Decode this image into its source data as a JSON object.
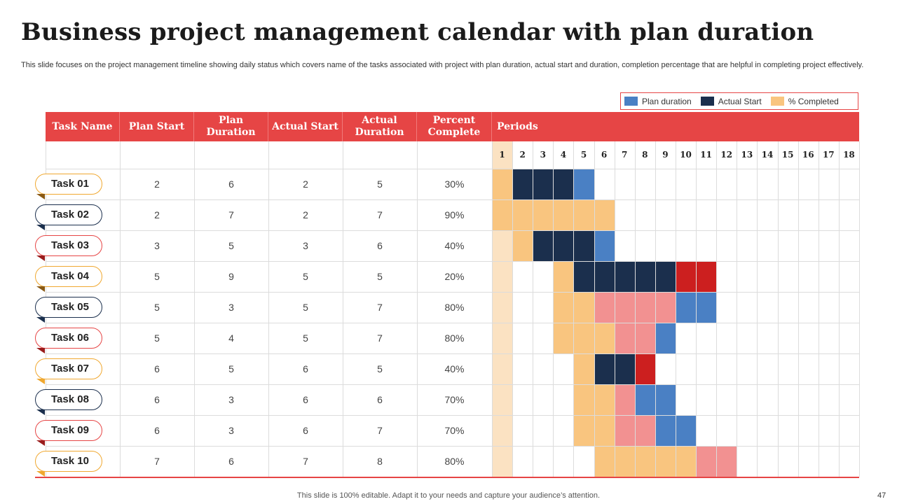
{
  "title": "Business project management calendar with plan duration",
  "subtitle": "This slide focuses on the project management timeline showing daily status which covers name of the tasks associated with project with plan duration, actual start and duration, completion percentage that are helpful in completing project effectively.",
  "legend": [
    {
      "label": "Plan duration",
      "color": "#4a80c4"
    },
    {
      "label": "Actual Start",
      "color": "#1b2f4d"
    },
    {
      "label": "% Completed",
      "color": "#f9c57f"
    }
  ],
  "columns": [
    "Task Name",
    "Plan Start",
    "Plan Duration",
    "Actual Start",
    "Actual Duration",
    "Percent Complete"
  ],
  "periods_label": "Periods",
  "days": [
    "1",
    "2",
    "3",
    "4",
    "5",
    "6",
    "7",
    "8",
    "9",
    "10",
    "11",
    "12",
    "13",
    "14",
    "15",
    "16",
    "17",
    "18"
  ],
  "colors": {
    "header": "#e64545",
    "plan": "#4a80c4",
    "actual": "#1b2f4d",
    "completed": "#f9c57f",
    "completed_alt": "#f29191",
    "overrun": "#cc1f1f",
    "day1": "#fbe2c2"
  },
  "tasks": [
    {
      "name": "Task 01",
      "plan_start": "2",
      "plan_duration": "6",
      "actual_start": "2",
      "actual_duration": "5",
      "percent": "30%",
      "tag_color": "#f0a830",
      "tail_color": "#8a5a14",
      "cells": [
        "completed",
        "actual",
        "actual",
        "actual",
        "plan"
      ]
    },
    {
      "name": "Task 02",
      "plan_start": "2",
      "plan_duration": "7",
      "actual_start": "2",
      "actual_duration": "7",
      "percent": "90%",
      "tag_color": "#1b2f4d",
      "tail_color": "#1b2f4d",
      "cells": [
        "completed",
        "completed",
        "completed",
        "completed",
        "completed",
        "completed"
      ]
    },
    {
      "name": "Task 03",
      "plan_start": "3",
      "plan_duration": "5",
      "actual_start": "3",
      "actual_duration": "6",
      "percent": "40%",
      "tag_color": "#e64545",
      "tail_color": "#9a1c1c",
      "cells": [
        "day1",
        "completed",
        "actual",
        "actual",
        "actual",
        "plan"
      ]
    },
    {
      "name": "Task 04",
      "plan_start": "5",
      "plan_duration": "9",
      "actual_start": "5",
      "actual_duration": "5",
      "percent": "20%",
      "tag_color": "#f0a830",
      "tail_color": "#8a5a14",
      "cells": [
        "day1",
        "",
        "",
        "completed",
        "actual",
        "actual",
        "actual",
        "actual",
        "actual",
        "overrun",
        "overrun"
      ]
    },
    {
      "name": "Task 05",
      "plan_start": "5",
      "plan_duration": "3",
      "actual_start": "5",
      "actual_duration": "7",
      "percent": "80%",
      "tag_color": "#1b2f4d",
      "tail_color": "#1b2f4d",
      "cells": [
        "day1",
        "",
        "",
        "completed",
        "completed",
        "completed_alt",
        "completed_alt",
        "completed_alt",
        "completed_alt",
        "plan",
        "plan"
      ]
    },
    {
      "name": "Task 06",
      "plan_start": "5",
      "plan_duration": "4",
      "actual_start": "5",
      "actual_duration": "7",
      "percent": "80%",
      "tag_color": "#e64545",
      "tail_color": "#9a1c1c",
      "cells": [
        "day1",
        "",
        "",
        "completed",
        "completed",
        "completed",
        "completed_alt",
        "completed_alt",
        "plan"
      ]
    },
    {
      "name": "Task 07",
      "plan_start": "6",
      "plan_duration": "5",
      "actual_start": "6",
      "actual_duration": "5",
      "percent": "40%",
      "tag_color": "#f0a830",
      "tail_color": "#f0a830",
      "cells": [
        "day1",
        "",
        "",
        "",
        "completed",
        "actual",
        "actual",
        "overrun"
      ]
    },
    {
      "name": "Task 08",
      "plan_start": "6",
      "plan_duration": "3",
      "actual_start": "6",
      "actual_duration": "6",
      "percent": "70%",
      "tag_color": "#1b2f4d",
      "tail_color": "#1b2f4d",
      "cells": [
        "day1",
        "",
        "",
        "",
        "completed",
        "completed",
        "completed_alt",
        "plan",
        "plan"
      ]
    },
    {
      "name": "Task 09",
      "plan_start": "6",
      "plan_duration": "3",
      "actual_start": "6",
      "actual_duration": "7",
      "percent": "70%",
      "tag_color": "#e64545",
      "tail_color": "#9a1c1c",
      "cells": [
        "day1",
        "",
        "",
        "",
        "completed",
        "completed",
        "completed_alt",
        "completed_alt",
        "plan",
        "plan"
      ]
    },
    {
      "name": "Task 10",
      "plan_start": "7",
      "plan_duration": "6",
      "actual_start": "7",
      "actual_duration": "8",
      "percent": "80%",
      "tag_color": "#f0a830",
      "tail_color": "#f0a830",
      "cells": [
        "day1",
        "",
        "",
        "",
        "",
        "completed",
        "completed",
        "completed",
        "completed",
        "completed",
        "completed_alt",
        "completed_alt"
      ]
    }
  ],
  "footer": "This slide is 100% editable. Adapt it to your needs and capture your audience’s attention.",
  "page_number": "47"
}
